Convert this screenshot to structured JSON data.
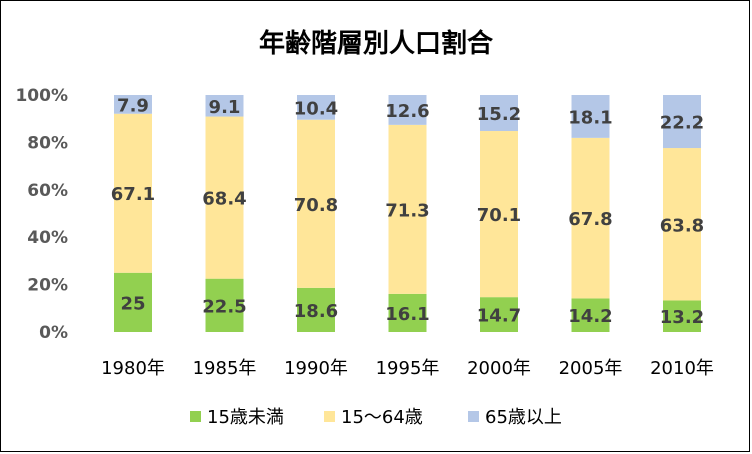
{
  "chart_data": {
    "type": "bar",
    "stacked": "percent",
    "title": "年齢階層別人口割合",
    "xlabel": "",
    "ylabel": "",
    "categories": [
      "1980年",
      "1985年",
      "1990年",
      "1995年",
      "2000年",
      "2005年",
      "2010年"
    ],
    "series": [
      {
        "name": "15歳未満",
        "color": "#92d050",
        "values": [
          25,
          22.5,
          18.6,
          16.1,
          14.7,
          14.2,
          13.2
        ]
      },
      {
        "name": "15～64歳",
        "color": "#ffe699",
        "values": [
          67.1,
          68.4,
          70.8,
          71.3,
          70.1,
          67.8,
          63.8
        ]
      },
      {
        "name": "65歳以上",
        "color": "#b4c7e7",
        "values": [
          7.9,
          9.1,
          10.4,
          12.6,
          15.2,
          18.1,
          22.2
        ]
      }
    ],
    "yticks": [
      "0%",
      "20%",
      "40%",
      "60%",
      "80%",
      "100%"
    ],
    "ylim": [
      0,
      100
    ],
    "grid": false,
    "legend_position": "bottom",
    "data_label_color": "#404040"
  }
}
